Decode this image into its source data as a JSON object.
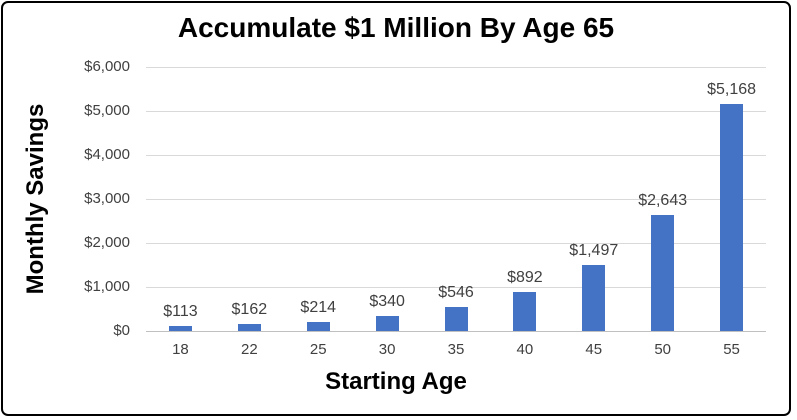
{
  "chart_data": {
    "type": "bar",
    "title": "Accumulate $1 Million By Age 65",
    "xlabel": "Starting Age",
    "ylabel": "Monthly Savings",
    "categories": [
      "18",
      "22",
      "25",
      "30",
      "35",
      "40",
      "45",
      "50",
      "55"
    ],
    "values": [
      113,
      162,
      214,
      340,
      546,
      892,
      1497,
      2643,
      5168
    ],
    "value_labels": [
      "$113",
      "$162",
      "$214",
      "$340",
      "$546",
      "$892",
      "$1,497",
      "$2,643",
      "$5,168"
    ],
    "y_axis": {
      "tick_values": [
        0,
        1000,
        2000,
        3000,
        4000,
        5000,
        6000
      ],
      "tick_labels": [
        "$0",
        "$1,000",
        "$2,000",
        "$3,000",
        "$4,000",
        "$5,000",
        "$6,000"
      ]
    },
    "ylim": [
      0,
      6000
    ],
    "grid": true,
    "legend": "none",
    "colors": {
      "bar": "#4472C4",
      "gridline": "#D9D9D9",
      "axis_line": "#C0C0C0",
      "tick_text": "#404040",
      "title_text": "#000000",
      "border": "#000000",
      "background": "#FFFFFF"
    }
  }
}
